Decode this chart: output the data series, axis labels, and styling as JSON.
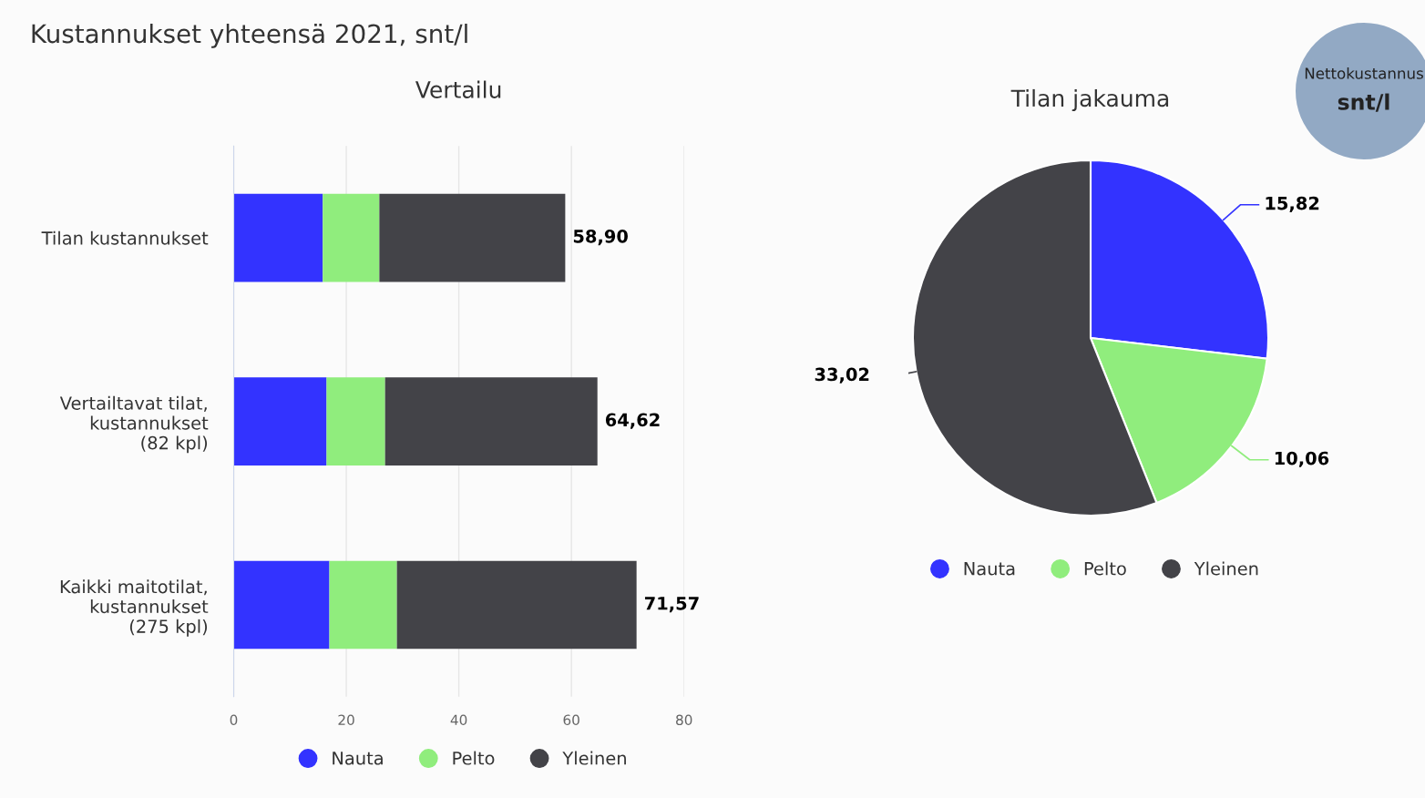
{
  "chart_data": [
    {
      "type": "bar",
      "orientation": "horizontal",
      "stacked": true,
      "title": "Vertailu",
      "annotations": [
        "Kustannukset yhteensä 2021, snt/l"
      ],
      "categories": [
        "Tilan kustannukset",
        "Vertailtavat tilat,\nkustannukset\n(82 kpl)",
        "Kaikki maitotilat,\nkustannukset\n(275 kpl)"
      ],
      "series": [
        {
          "name": "Nauta",
          "color": "#3333ff",
          "values": [
            15.82,
            16.5,
            17.0
          ]
        },
        {
          "name": "Pelto",
          "color": "#90ed7d",
          "values": [
            10.06,
            10.4,
            12.0
          ]
        },
        {
          "name": "Yleinen",
          "color": "#434348",
          "values": [
            33.02,
            37.72,
            42.57
          ]
        }
      ],
      "totals": [
        "58,90",
        "64,62",
        "71,57"
      ],
      "xlim": [
        0,
        80
      ],
      "xticks": [
        0,
        20,
        40,
        60,
        80
      ],
      "grid": "x",
      "legend": "bottom"
    },
    {
      "type": "pie",
      "title": "Tilan jakauma",
      "annotations": [
        "Nettokustannus",
        "snt/l"
      ],
      "categories": [
        "Nauta",
        "Pelto",
        "Yleinen"
      ],
      "values": [
        15.82,
        10.06,
        33.02
      ],
      "value_labels": [
        "15,82",
        "10,06",
        "33,02"
      ],
      "colors": [
        "#3333ff",
        "#90ed7d",
        "#434348"
      ],
      "legend": "bottom"
    }
  ]
}
